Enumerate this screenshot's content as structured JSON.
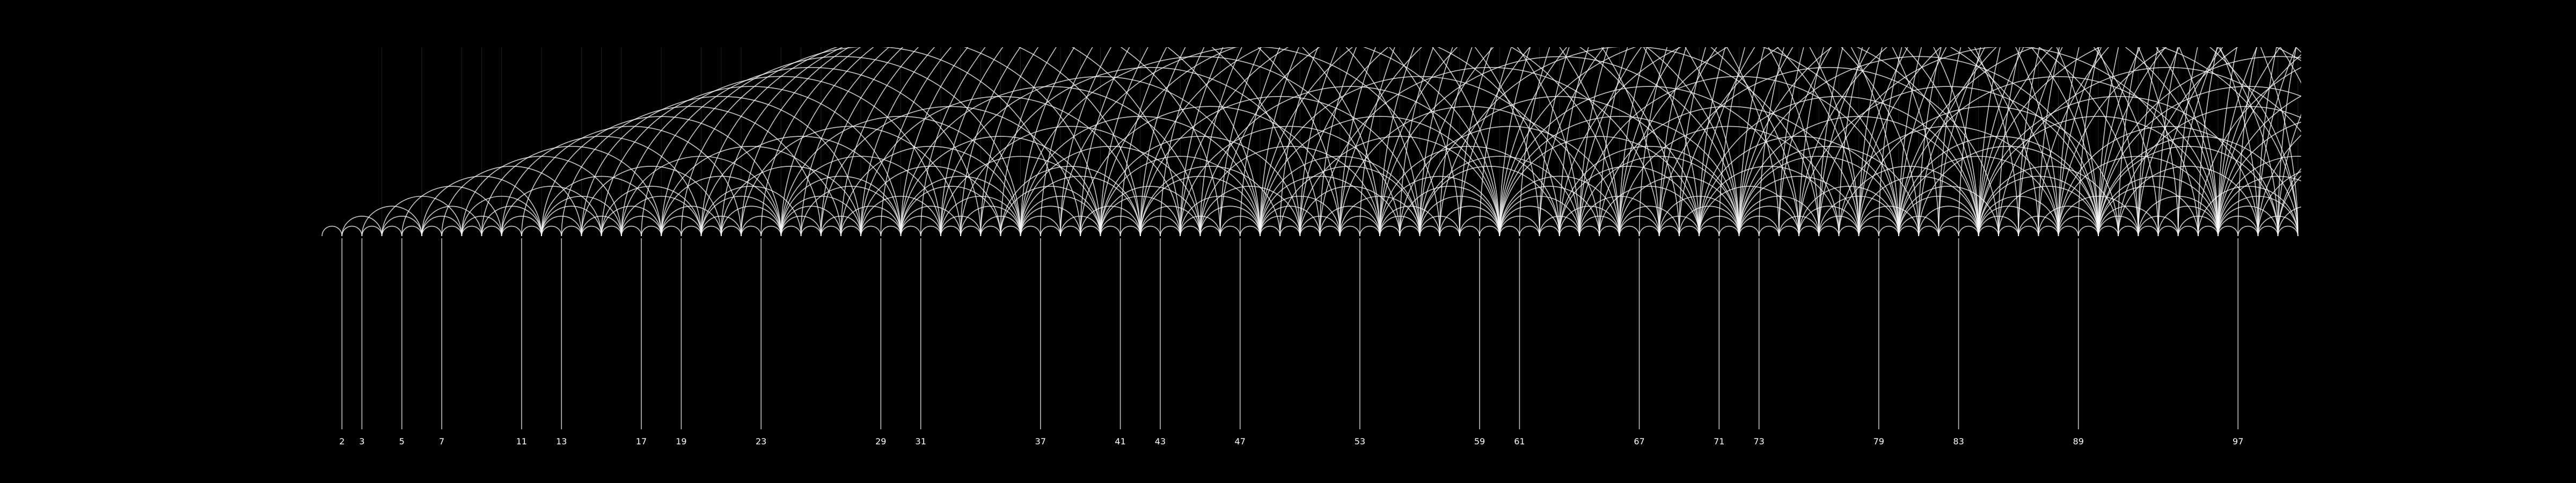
{
  "diagram": {
    "kind": "sieve-of-eratosthenes-arcs",
    "n_min": 1,
    "n_max": 100,
    "primes": [
      2,
      3,
      5,
      7,
      11,
      13,
      17,
      19,
      23,
      29,
      31,
      37,
      41,
      43,
      47,
      53,
      59,
      61,
      67,
      71,
      73,
      79,
      83,
      89,
      97
    ],
    "prime_labels": [
      "2",
      "3",
      "5",
      "7",
      "11",
      "13",
      "17",
      "19",
      "23",
      "29",
      "31",
      "37",
      "41",
      "43",
      "47",
      "53",
      "59",
      "61",
      "67",
      "71",
      "73",
      "79",
      "83",
      "89",
      "97"
    ]
  },
  "colors": {
    "background": "#000000",
    "arc": "#ffffff",
    "prime_line": "#ffffff",
    "composite_line": "#ffffff",
    "label": "#ffffff"
  }
}
